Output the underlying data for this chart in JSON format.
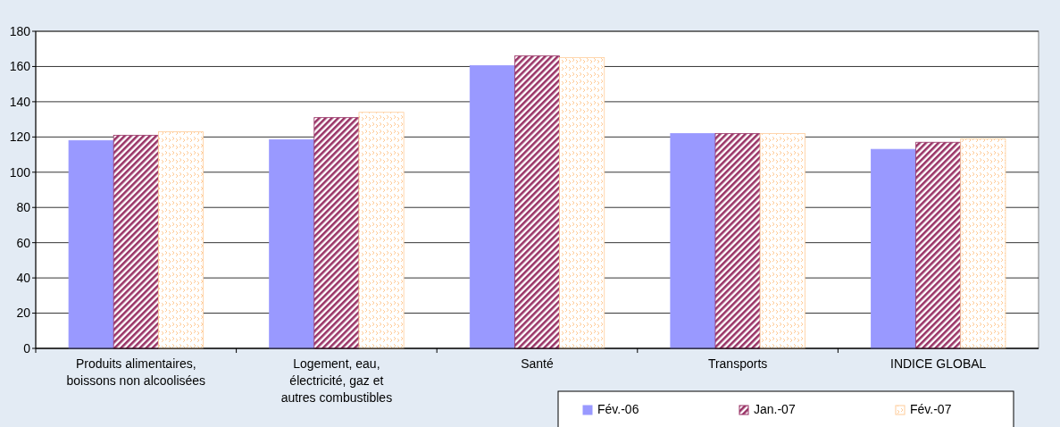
{
  "chart_data": {
    "type": "bar",
    "categories": [
      "Produits alimentaires, boissons non alcoolisées",
      "Logement, eau, électricité, gaz et autres combustibles",
      "Santé",
      "Transports",
      "INDICE   GLOBAL"
    ],
    "series": [
      {
        "name": "Fév.-06",
        "color": "#9999ff",
        "values": [
          118,
          118.5,
          160.5,
          122,
          113
        ]
      },
      {
        "name": "Jan.-07",
        "color": "#993366",
        "values": [
          121,
          131,
          166,
          122,
          117
        ]
      },
      {
        "name": "Fév.-07",
        "color": "#ffcc99",
        "values": [
          123,
          134,
          165,
          122,
          119
        ]
      }
    ],
    "ylim": [
      0,
      180
    ],
    "yticks": [
      0,
      20,
      40,
      60,
      80,
      100,
      120,
      140,
      160,
      180
    ],
    "grid": "y",
    "legend": "bottom right"
  }
}
